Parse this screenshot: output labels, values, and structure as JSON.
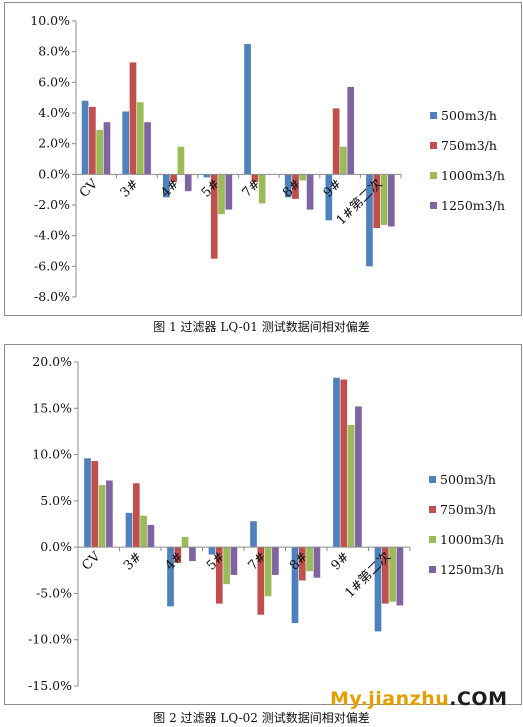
{
  "chart_data": [
    {
      "type": "bar",
      "caption": "图 1 过滤器 LQ-01 测试数据间相对偏差",
      "categories": [
        "CV",
        "3#",
        "4#",
        "5#",
        "7#",
        "8#",
        "9#",
        "1#第二次"
      ],
      "series": [
        {
          "name": "500m3/h",
          "color": "#4f81bd",
          "values": [
            4.8,
            4.1,
            -1.5,
            -0.2,
            8.5,
            -1.5,
            -3.0,
            -6.0
          ]
        },
        {
          "name": "750m3/h",
          "color": "#c0504d",
          "values": [
            4.4,
            7.3,
            -0.5,
            -5.5,
            -0.5,
            -1.6,
            4.3,
            -3.5
          ]
        },
        {
          "name": "1000m3/h",
          "color": "#9bbb59",
          "values": [
            2.9,
            4.7,
            1.8,
            -2.6,
            -1.9,
            -0.4,
            1.8,
            -3.3
          ]
        },
        {
          "name": "1250m3/h",
          "color": "#8064a2",
          "values": [
            3.4,
            3.4,
            -1.1,
            -2.3,
            0.0,
            -2.3,
            5.7,
            -3.4
          ]
        }
      ],
      "ylim": [
        -8,
        10
      ],
      "yticks": [
        10,
        8,
        6,
        4,
        2,
        0,
        -2,
        -4,
        -6,
        -8
      ],
      "ytick_labels": [
        "10.0%",
        "8.0%",
        "6.0%",
        "4.0%",
        "2.0%",
        "0.0%",
        "-2.0%",
        "-4.0%",
        "-6.0%",
        "-8.0%"
      ],
      "legend_position": "right",
      "grid": false
    },
    {
      "type": "bar",
      "caption": "图 2 过滤器 LQ-02 测试数据间相对偏差",
      "categories": [
        "CV",
        "3#",
        "4#",
        "5#",
        "7#",
        "8#",
        "9#",
        "1#第二次"
      ],
      "series": [
        {
          "name": "500m3/h",
          "color": "#4f81bd",
          "values": [
            9.6,
            3.7,
            -6.4,
            -0.8,
            2.8,
            -8.2,
            18.3,
            -9.1
          ]
        },
        {
          "name": "750m3/h",
          "color": "#c0504d",
          "values": [
            9.3,
            6.9,
            -1.7,
            -6.1,
            -7.3,
            -3.6,
            18.1,
            -6.1
          ]
        },
        {
          "name": "1000m3/h",
          "color": "#9bbb59",
          "values": [
            6.7,
            3.4,
            1.1,
            -4.0,
            -5.3,
            -2.6,
            13.2,
            -5.9
          ]
        },
        {
          "name": "1250m3/h",
          "color": "#8064a2",
          "values": [
            7.2,
            2.4,
            -1.5,
            -3.0,
            -3.0,
            -3.3,
            15.2,
            -6.3
          ]
        }
      ],
      "ylim": [
        -15,
        20
      ],
      "yticks": [
        20,
        15,
        10,
        5,
        0,
        -5,
        -10,
        -15
      ],
      "ytick_labels": [
        "20.0%",
        "15.0%",
        "10.0%",
        "5.0%",
        "0.0%",
        "-5.0%",
        "-10.0%",
        "-15.0%"
      ],
      "legend_position": "right",
      "grid": false
    }
  ],
  "watermark": {
    "part_a": "My",
    "part_b": "jianzhu",
    "part_c": ".COM"
  }
}
